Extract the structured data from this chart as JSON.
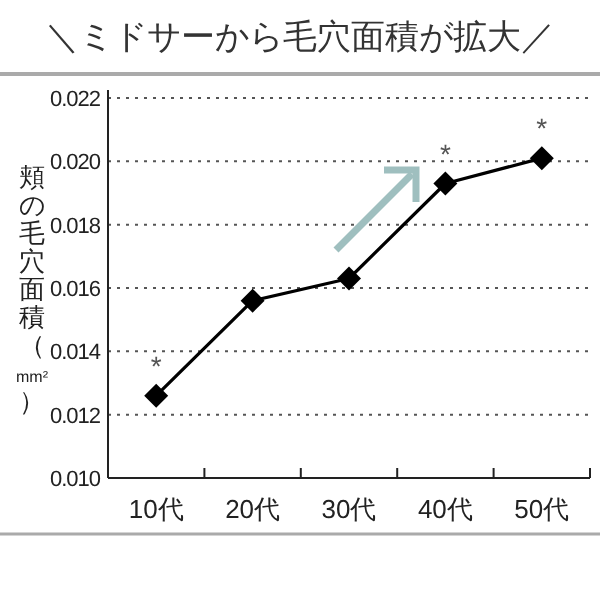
{
  "chart_data": {
    "type": "line",
    "title": "＼ミドサーから毛穴面積が拡大／",
    "ylabel": "頬の毛穴面積（mm²）",
    "categories": [
      "10代",
      "20代",
      "30代",
      "40代",
      "50代"
    ],
    "series": [
      {
        "color": "#000000",
        "values": [
          0.0126,
          0.0156,
          0.0163,
          0.0193,
          0.0201
        ]
      }
    ],
    "ylim": [
      0.01,
      0.022
    ],
    "yticks": [
      {
        "value": 0.01,
        "label": "0.010"
      },
      0.012,
      0.014,
      0.016,
      0.018,
      {
        "value": 0.02,
        "label": "0.020"
      },
      0.022
    ],
    "grid": "y",
    "marker": "diamond",
    "line_style": "solid",
    "annotations": [
      {
        "text": "*",
        "x": "10代",
        "y": 0.0126
      },
      {
        "text": "*",
        "x": "40代",
        "y": 0.0193
      },
      {
        "text": "*",
        "x": "50代",
        "y": 0.0201
      }
    ]
  }
}
